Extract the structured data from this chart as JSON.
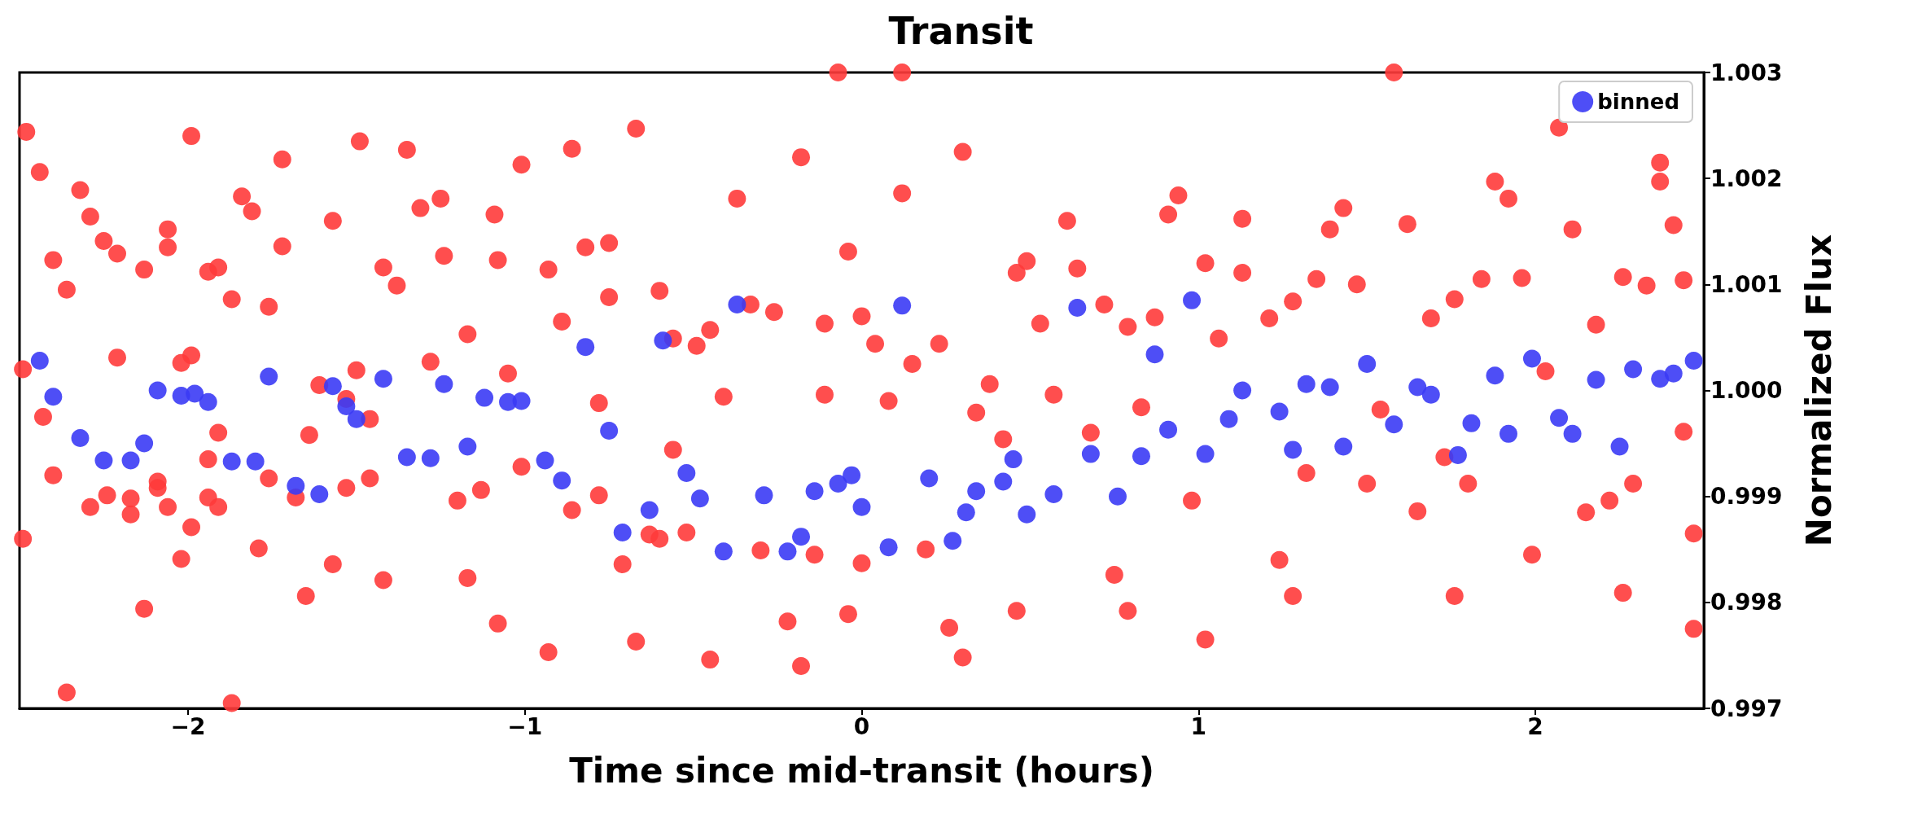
{
  "chart_data": {
    "type": "scatter",
    "title": "Transit",
    "xlabel": "Time since mid-transit (hours)",
    "ylabel": "Normalized Flux",
    "xlim": [
      -2.5,
      2.5
    ],
    "xticks": [
      {
        "value": -2,
        "label": "−2"
      },
      {
        "value": -1,
        "label": "−1"
      },
      0,
      1,
      2
    ],
    "ylim": [
      0.997,
      1.003
    ],
    "yticks": [
      0.997,
      0.998,
      0.999,
      {
        "value": 1,
        "label": "1.000"
      },
      1.001,
      1.002,
      1.003
    ],
    "grid": false,
    "legend": "top right",
    "marker": "circle",
    "series": [
      {
        "color": "#ff3b3b",
        "x": [
          -2.48,
          -2.49,
          -2.49,
          -2.44,
          -2.43,
          -2.4,
          -2.4,
          -2.36,
          -2.36,
          -2.32,
          -2.29,
          -2.29,
          -2.25,
          -2.24,
          -2.21,
          -2.21,
          -2.17,
          -2.17,
          -2.13,
          -2.13,
          -2.09,
          -2.09,
          -2.06,
          -2.06,
          -2.06,
          -2.02,
          -2.02,
          -1.99,
          -1.99,
          -1.99,
          -1.94,
          -1.94,
          -1.94,
          -1.91,
          -1.91,
          -1.91,
          -1.87,
          -1.87,
          -1.84,
          -1.81,
          -1.79,
          -1.76,
          -1.76,
          -1.72,
          -1.72,
          -1.68,
          -1.65,
          -1.64,
          -1.61,
          -1.57,
          -1.57,
          -1.53,
          -1.53,
          -1.5,
          -1.49,
          -1.46,
          -1.46,
          -1.42,
          -1.42,
          -1.38,
          -1.35,
          -1.31,
          -1.28,
          -1.25,
          -1.24,
          -1.2,
          -1.17,
          -1.17,
          -1.13,
          -1.09,
          -1.08,
          -1.08,
          -1.05,
          -1.01,
          -1.01,
          -0.93,
          -0.93,
          -0.89,
          -0.86,
          -0.86,
          -0.82,
          -0.78,
          -0.78,
          -0.75,
          -0.75,
          -0.71,
          -0.67,
          -0.67,
          -0.63,
          -0.6,
          -0.6,
          -0.56,
          -0.56,
          -0.52,
          -0.49,
          -0.45,
          -0.45,
          -0.41,
          -0.37,
          -0.33,
          -0.3,
          -0.26,
          -0.22,
          -0.18,
          -0.18,
          -0.14,
          -0.11,
          -0.11,
          -0.07,
          -0.04,
          -0.04,
          0,
          0,
          0.04,
          0.08,
          0.12,
          0.12,
          0.15,
          0.19,
          0.23,
          0.26,
          0.3,
          0.3,
          0.34,
          0.38,
          0.42,
          0.46,
          0.46,
          0.49,
          0.53,
          0.57,
          0.61,
          0.64,
          0.68,
          0.72,
          0.75,
          0.79,
          0.79,
          0.83,
          0.87,
          0.91,
          0.94,
          0.98,
          1.02,
          1.02,
          1.06,
          1.13,
          1.13,
          1.21,
          1.24,
          1.28,
          1.28,
          1.32,
          1.35,
          1.39,
          1.43,
          1.47,
          1.5,
          1.54,
          1.58,
          1.62,
          1.65,
          1.69,
          1.73,
          1.76,
          1.76,
          1.8,
          1.84,
          1.88,
          1.92,
          1.96,
          1.99,
          2.03,
          2.07,
          2.11,
          2.15,
          2.18,
          2.22,
          2.26,
          2.26,
          2.29,
          2.33,
          2.37,
          2.37,
          2.41,
          2.44,
          2.44,
          2.47,
          2.47
        ],
        "values": [
          1.00244,
          1.0002,
          0.9986,
          1.00206,
          0.99975,
          0.9992,
          1.00123,
          1.00095,
          0.99715,
          1.00189,
          1.00164,
          0.9989,
          1.00141,
          0.99901,
          1.00031,
          1.00129,
          0.99883,
          0.99898,
          1.00114,
          0.99794,
          0.99914,
          0.99908,
          1.00152,
          0.9989,
          1.00135,
          0.99841,
          1.00026,
          1.00033,
          0.99871,
          1.0024,
          1.00112,
          0.99935,
          0.99899,
          1.00116,
          0.9996,
          0.9989,
          1.00086,
          0.99705,
          1.00183,
          1.00169,
          0.99851,
          1.00079,
          0.99917,
          1.00218,
          1.00136,
          0.99899,
          0.99806,
          0.99958,
          1.00005,
          1.0016,
          0.99836,
          0.99992,
          0.99908,
          1.00019,
          1.00235,
          0.99973,
          0.99917,
          1.00116,
          0.99821,
          1.00099,
          1.00227,
          1.00172,
          1.00027,
          1.00181,
          1.00127,
          0.99896,
          1.00053,
          0.99823,
          0.99906,
          1.00166,
          1.00123,
          0.9978,
          1.00016,
          1.00213,
          0.99928,
          1.00114,
          0.99753,
          1.00065,
          1.00228,
          0.99887,
          1.00135,
          0.99988,
          0.99901,
          1.00139,
          1.00088,
          0.99836,
          1.00247,
          0.99763,
          0.99864,
          1.00094,
          0.9986,
          0.99944,
          1.00049,
          0.99866,
          1.00042,
          0.99746,
          1.00057,
          0.99994,
          1.00181,
          1.00081,
          0.99849,
          1.00074,
          0.99782,
          1.0022,
          0.9974,
          0.99845,
          1.00063,
          0.99996,
          1.003,
          1.00131,
          0.99789,
          1.0007,
          0.99837,
          1.00044,
          0.9999,
          1.003,
          1.00186,
          1.00025,
          0.9985,
          1.00044,
          0.99776,
          1.00225,
          0.99748,
          0.99979,
          1.00006,
          0.99954,
          1.00111,
          0.99792,
          1.00122,
          1.00063,
          0.99996,
          1.0016,
          1.00115,
          0.9996,
          1.00081,
          0.99826,
          0.99792,
          1.0006,
          0.99984,
          1.00069,
          1.00166,
          1.00184,
          0.99896,
          1.0012,
          0.99765,
          1.00049,
          1.00162,
          1.00111,
          1.00068,
          0.9984,
          0.99806,
          1.00084,
          0.99922,
          1.00105,
          1.00152,
          1.00172,
          1.001,
          0.99912,
          0.99982,
          1.003,
          1.00157,
          0.99886,
          1.00068,
          0.99937,
          0.99806,
          1.00086,
          0.99912,
          1.00105,
          1.00197,
          1.00181,
          1.00106,
          0.99845,
          1.00018,
          1.00248,
          1.00152,
          0.99885,
          1.00062,
          0.99896,
          0.99809,
          1.00107,
          0.99912,
          1.00099,
          1.00215,
          1.00197,
          1.00156,
          1.00104,
          0.99961,
          0.99865,
          0.99775
        ]
      },
      {
        "name": "binned",
        "color": "#3b3bf5",
        "x": [
          -2.44,
          -2.4,
          -2.32,
          -2.25,
          -2.17,
          -2.13,
          -2.09,
          -2.02,
          -1.98,
          -1.94,
          -1.87,
          -1.8,
          -1.76,
          -1.68,
          -1.61,
          -1.57,
          -1.53,
          -1.5,
          -1.42,
          -1.35,
          -1.28,
          -1.24,
          -1.17,
          -1.12,
          -1.05,
          -1.01,
          -0.94,
          -0.89,
          -0.82,
          -0.75,
          -0.71,
          -0.63,
          -0.59,
          -0.52,
          -0.48,
          -0.41,
          -0.37,
          -0.29,
          -0.22,
          -0.18,
          -0.14,
          -0.07,
          -0.03,
          0,
          0.08,
          0.12,
          0.2,
          0.27,
          0.31,
          0.34,
          0.42,
          0.45,
          0.49,
          0.57,
          0.64,
          0.68,
          0.76,
          0.83,
          0.87,
          0.91,
          0.98,
          1.02,
          1.09,
          1.13,
          1.24,
          1.28,
          1.32,
          1.39,
          1.43,
          1.5,
          1.58,
          1.65,
          1.69,
          1.77,
          1.81,
          1.88,
          1.92,
          1.99,
          2.07,
          2.11,
          2.18,
          2.25,
          2.29,
          2.37,
          2.41,
          2.47
        ],
        "values": [
          1.00028,
          0.99994,
          0.99955,
          0.99934,
          0.99934,
          0.9995,
          1.0,
          0.99995,
          0.99997,
          0.99989,
          0.99933,
          0.99933,
          1.00013,
          0.9991,
          0.99902,
          1.00004,
          0.99985,
          0.99973,
          1.00011,
          0.99937,
          0.99936,
          1.00006,
          0.99947,
          0.99993,
          0.99989,
          0.9999,
          0.99934,
          0.99915,
          1.00041,
          0.99962,
          0.99866,
          0.99887,
          1.00047,
          0.99922,
          0.99898,
          0.99848,
          1.00081,
          0.99901,
          0.99848,
          0.99862,
          0.99905,
          0.99912,
          0.9992,
          0.9989,
          0.99852,
          1.0008,
          0.99917,
          0.99858,
          0.99885,
          0.99905,
          0.99914,
          0.99935,
          0.99883,
          0.99902,
          1.00078,
          0.9994,
          0.999,
          0.99938,
          1.00034,
          0.99963,
          1.00085,
          0.9994,
          0.99973,
          1.0,
          0.9998,
          0.99944,
          1.00006,
          1.00003,
          0.99947,
          1.00025,
          0.99968,
          1.00003,
          0.99996,
          0.99939,
          0.99969,
          1.00014,
          0.99959,
          1.0003,
          0.99974,
          0.99959,
          1.0001,
          0.99947,
          1.0002,
          1.00011,
          1.00016,
          1.00028
        ]
      }
    ]
  }
}
